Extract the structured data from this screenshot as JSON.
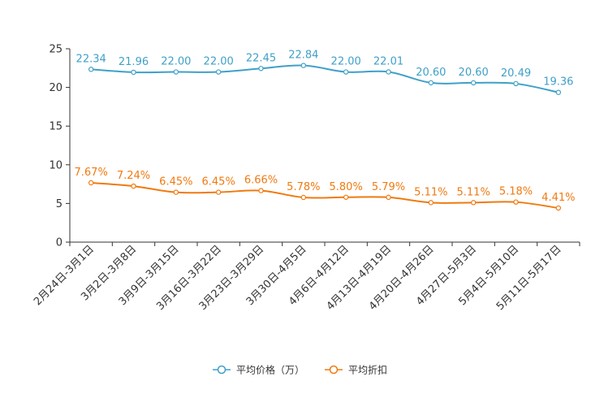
{
  "chart_data": {
    "type": "line",
    "title": "",
    "xlabel": "",
    "ylabel": "",
    "ylim": [
      0,
      25
    ],
    "yticks": [
      0,
      5,
      10,
      15,
      20,
      25
    ],
    "grid": false,
    "legend_position": "bottom-center",
    "categories": [
      "2月24日-3月1日",
      "3月2日-3月8日",
      "3月9日-3月15日",
      "3月16日-3月22日",
      "3月23日-3月29日",
      "3月30日-4月5日",
      "4月6日-4月12日",
      "4月13日-4月19日",
      "4月20日-4月26日",
      "4月27日-5月3日",
      "5月4日-5月10日",
      "5月11日-5月17日"
    ],
    "series": [
      {
        "name": "平均价格（万）",
        "color": "#3fa0c8",
        "values": [
          22.34,
          21.96,
          22.0,
          22.0,
          22.45,
          22.84,
          22.0,
          22.01,
          20.6,
          20.6,
          20.49,
          19.36
        ],
        "labels": [
          "22.34",
          "21.96",
          "22.00",
          "22.00",
          "22.45",
          "22.84",
          "22.00",
          "22.01",
          "20.60",
          "20.60",
          "20.49",
          "19.36"
        ]
      },
      {
        "name": "平均折扣",
        "color": "#f07a10",
        "values": [
          7.67,
          7.24,
          6.45,
          6.45,
          6.66,
          5.78,
          5.8,
          5.79,
          5.11,
          5.11,
          5.18,
          4.41
        ],
        "labels": [
          "7.67%",
          "7.24%",
          "6.45%",
          "6.45%",
          "6.66%",
          "5.78%",
          "5.80%",
          "5.79%",
          "5.11%",
          "5.11%",
          "5.18%",
          "4.41%"
        ]
      }
    ]
  }
}
